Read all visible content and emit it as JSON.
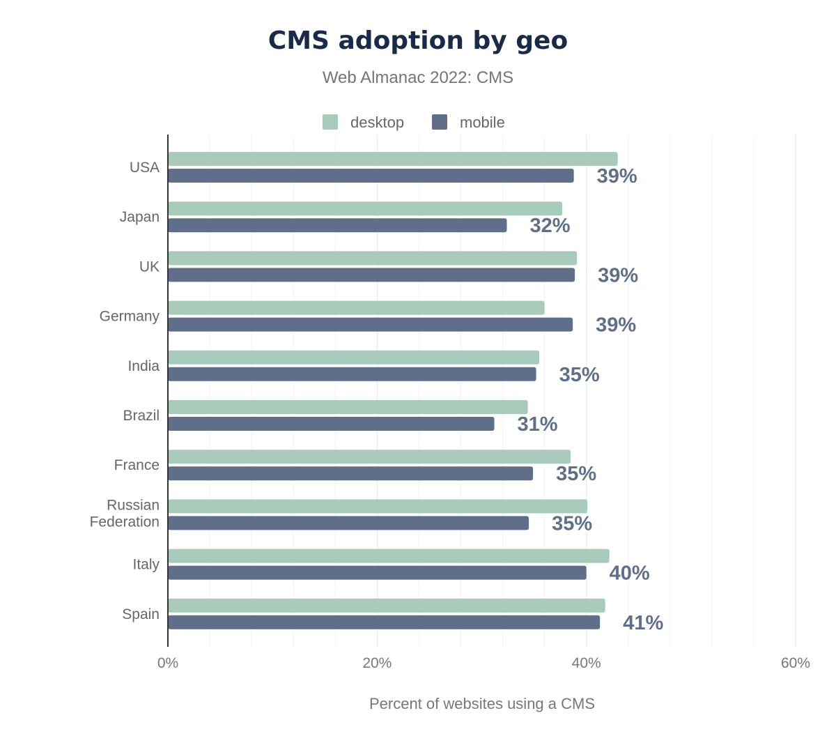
{
  "chart_data": {
    "type": "bar",
    "orientation": "horizontal",
    "title": "CMS adoption by geo",
    "subtitle": "Web Almanac 2022: CMS",
    "xlabel": "Percent of websites using a CMS",
    "ylabel": "",
    "xlim": [
      0,
      60
    ],
    "xticks": [
      "0%",
      "20%",
      "40%",
      "60%"
    ],
    "grid": true,
    "legend_position": "top",
    "categories": [
      "USA",
      "Japan",
      "UK",
      "Germany",
      "India",
      "Brazil",
      "France",
      "Russian Federation",
      "Italy",
      "Spain"
    ],
    "series": [
      {
        "name": "desktop",
        "color": "#a8cbbb",
        "values": [
          43.0,
          37.7,
          39.1,
          36.0,
          35.5,
          34.4,
          38.5,
          40.1,
          42.2,
          41.8
        ]
      },
      {
        "name": "mobile",
        "color": "#5f6f8a",
        "values": [
          38.8,
          32.4,
          38.9,
          38.7,
          35.2,
          31.2,
          34.9,
          34.5,
          40.0,
          41.3
        ]
      }
    ],
    "data_labels": [
      "39%",
      "32%",
      "39%",
      "39%",
      "35%",
      "31%",
      "35%",
      "35%",
      "40%",
      "41%"
    ]
  }
}
